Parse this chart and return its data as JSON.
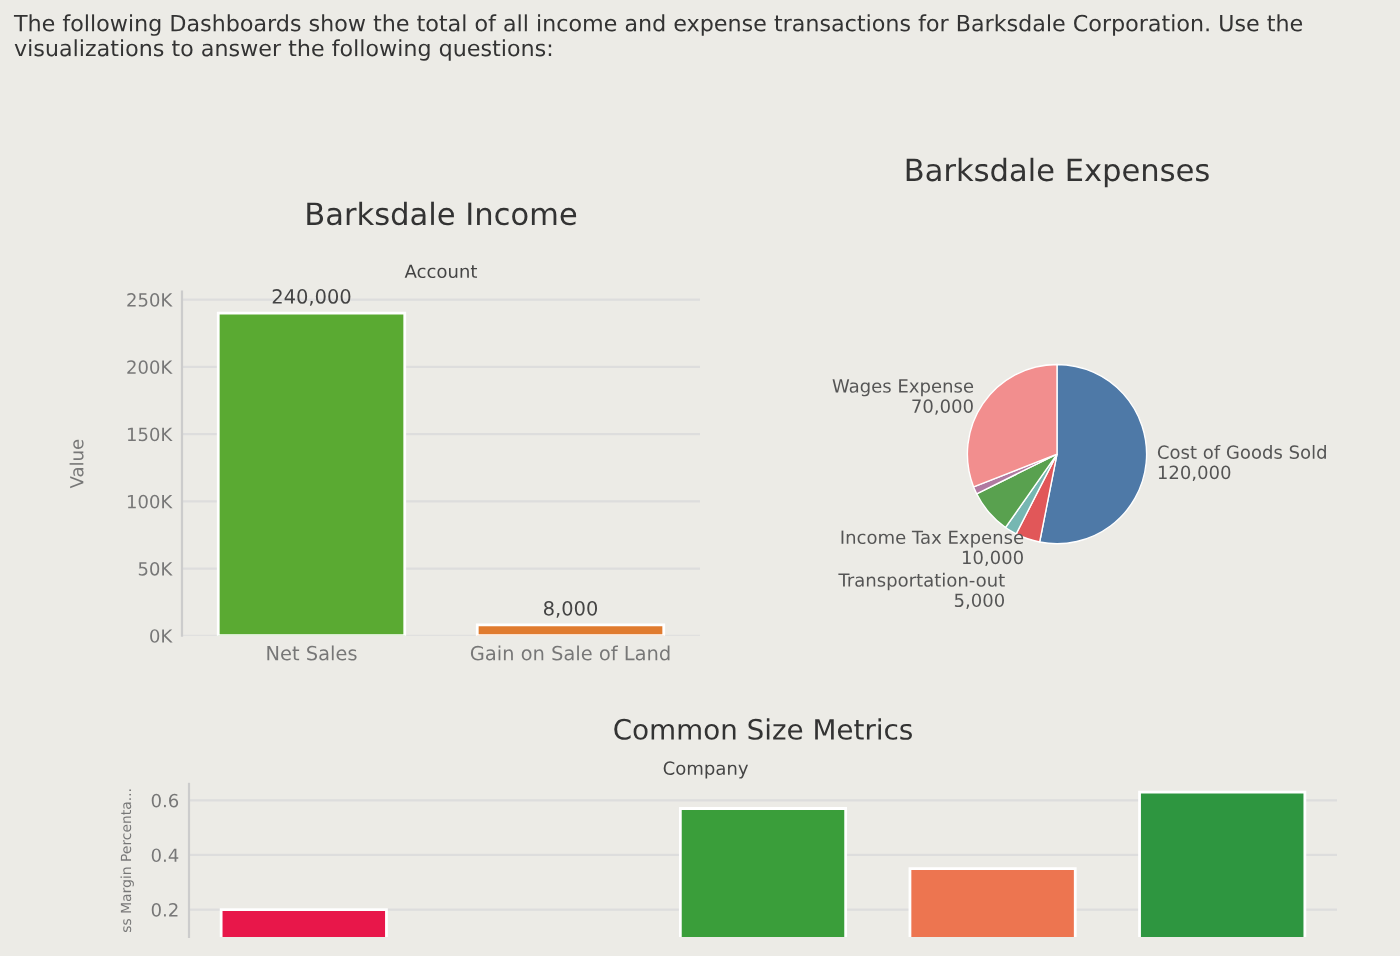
{
  "chart_data": [
    {
      "type": "bar",
      "title": "Barksdale Income",
      "subtitle": "Account",
      "ylabel": "Value",
      "annotations": [
        "The following Dashboards show the total of all income and expense transactions for Barksdale Corporation. Use the visualizations to answer the following questions:"
      ],
      "categories": [
        "Net Sales",
        "Gain on Sale of Land"
      ],
      "values": [
        240000,
        8000
      ],
      "colors": [
        "#5aaa32",
        "#e07b2f"
      ],
      "value_labels": [
        "240,000",
        "8,000"
      ],
      "ylim": [
        0,
        256000
      ],
      "yticks": [
        {
          "value": 0,
          "label": "0K"
        },
        {
          "value": 50000,
          "label": "50K"
        },
        {
          "value": 100000,
          "label": "100K"
        },
        {
          "value": 150000,
          "label": "150K"
        },
        {
          "value": 200000,
          "label": "200K"
        },
        {
          "value": 250000,
          "label": "250K"
        }
      ],
      "grid": "y"
    },
    {
      "type": "pie",
      "title": "Barksdale Expenses",
      "categories": [
        "Cost of Goods Sold",
        "Income Tax Expense",
        "Transportation-out",
        null,
        null,
        "Wages Expense"
      ],
      "values": [
        120000,
        10000,
        5000,
        18000,
        3000,
        70000
      ],
      "colors": [
        "#4e79a7",
        "#e15759",
        "#76b7b2",
        "#59a14f",
        "#b07aa1",
        "#f28e8e"
      ],
      "value_labels": [
        "120,000",
        "10,000",
        "5,000",
        null,
        null,
        "70,000"
      ]
    },
    {
      "type": "bar",
      "title": "Common Size Metrics",
      "subtitle": "Company",
      "ylabel": "ss Margin Percenta...",
      "categories": [
        null,
        null,
        null,
        null,
        null
      ],
      "values": [
        0.2,
        null,
        0.57,
        0.35,
        0.63
      ],
      "colors": [
        "#e8174a",
        "#3a9e3a",
        "#3a9e3a",
        "#ed7550",
        "#2e9640"
      ],
      "ylim": [
        0.1,
        0.66
      ],
      "yticks": [
        0.2,
        0.4,
        0.6
      ],
      "grid": "y"
    }
  ]
}
